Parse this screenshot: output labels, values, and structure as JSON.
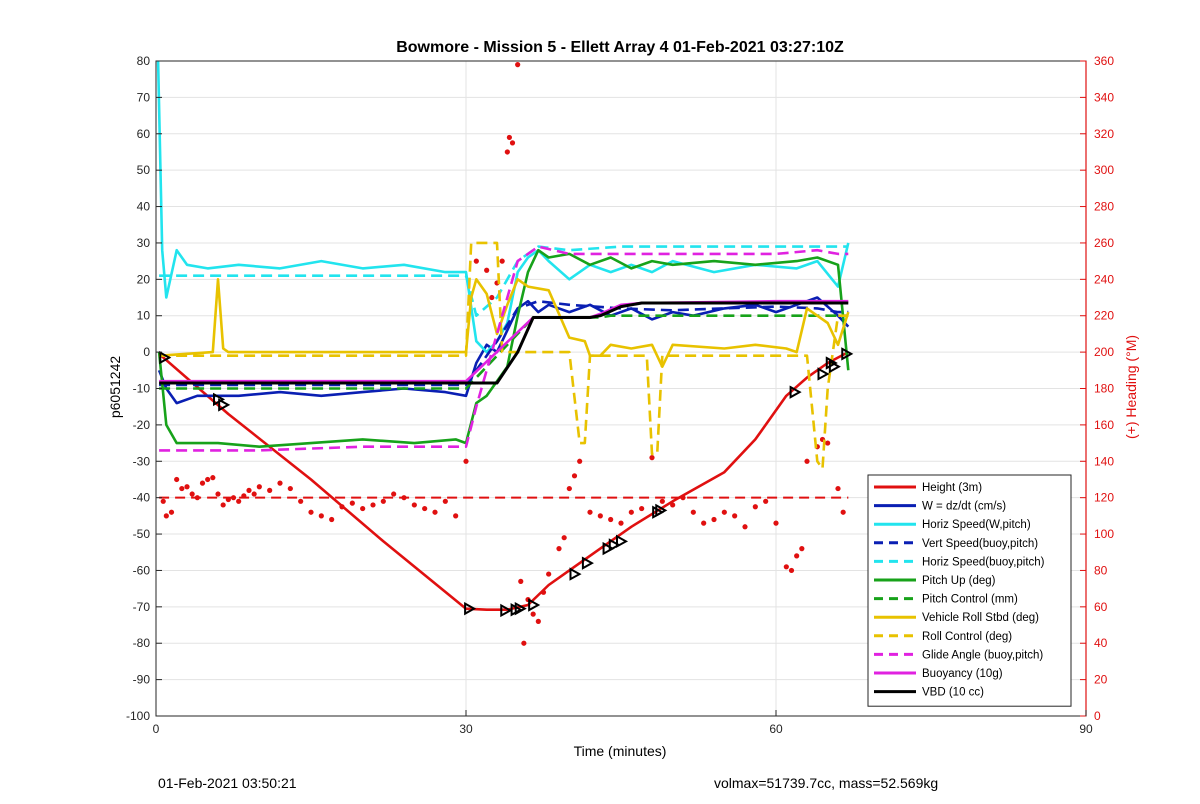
{
  "chart_data": {
    "type": "line",
    "title": "Bowmore - Mission 5 - Ellett Array 4 01-Feb-2021 03:27:10Z",
    "xlabel": "Time (minutes)",
    "ylabel": "p6051242",
    "y2label": "(+) Heading (°M)",
    "xlim": [
      0,
      90
    ],
    "ylim": [
      -100,
      80
    ],
    "y2lim": [
      0,
      360
    ],
    "xticks": [
      "0",
      "30",
      "60",
      "90"
    ],
    "yticks": [
      "-100",
      "-90",
      "-80",
      "-70",
      "-60",
      "-50",
      "-40",
      "-30",
      "-20",
      "-10",
      "0",
      "10",
      "20",
      "30",
      "40",
      "50",
      "60",
      "70",
      "80"
    ],
    "y2ticks": [
      "0",
      "20",
      "40",
      "60",
      "80",
      "100",
      "120",
      "140",
      "160",
      "180",
      "200",
      "220",
      "240",
      "260",
      "280",
      "300",
      "320",
      "340",
      "360"
    ],
    "grid": true,
    "legend_position": "bottom-right",
    "colors": {
      "red": "#e01010",
      "blue": "#0a1fb3",
      "cyan": "#22e4ee",
      "green": "#17a21a",
      "yellow": "#e8c200",
      "magenta": "#e022e0",
      "black": "#000000"
    },
    "series": [
      {
        "name": "Height (3m)",
        "color": "#e01010",
        "style": "solid",
        "x": [
          0.5,
          7,
          15,
          22,
          30,
          32,
          34,
          36,
          38,
          40,
          43,
          46,
          50,
          55,
          58,
          61,
          63,
          65,
          67
        ],
        "y": [
          -1,
          -17,
          -35,
          -52,
          -70.5,
          -70.8,
          -70.8,
          -69.5,
          -64,
          -60,
          -54,
          -48,
          -41,
          -33,
          -24,
          -12,
          -7,
          -3,
          0
        ]
      },
      {
        "name": "W = dz/dt (cm/s)",
        "color": "#0a1fb3",
        "style": "solid",
        "x": [
          0.3,
          1,
          2,
          4,
          8,
          12,
          16,
          20,
          24,
          28,
          30,
          31,
          32,
          33,
          34,
          35,
          36,
          37,
          38,
          40,
          42,
          44,
          46,
          48,
          50,
          52,
          55,
          58,
          60,
          62,
          64,
          66,
          67
        ],
        "y": [
          -5,
          -10,
          -14,
          -12,
          -12,
          -11,
          -12,
          -11,
          -10,
          -11,
          -12,
          -3,
          2,
          0,
          6,
          12,
          14,
          11,
          13,
          11,
          13,
          10,
          12,
          9,
          11,
          10,
          12,
          13,
          11,
          13,
          15,
          10,
          7
        ]
      },
      {
        "name": "Horiz Speed(W,pitch)",
        "color": "#22e4ee",
        "style": "solid",
        "x": [
          0.2,
          0.6,
          1,
          2,
          3,
          5,
          8,
          12,
          16,
          20,
          24,
          28,
          30,
          31,
          32,
          33,
          34,
          35,
          36,
          37,
          38,
          40,
          42,
          44,
          46,
          48,
          50,
          54,
          58,
          62,
          64,
          66,
          67
        ],
        "y": [
          80,
          28,
          15,
          28,
          24,
          23,
          24,
          23,
          25,
          23,
          24,
          22,
          22,
          3,
          0,
          3,
          8,
          22,
          26,
          28,
          25,
          20,
          24,
          22,
          24,
          22,
          25,
          22,
          24,
          23,
          25,
          18,
          30
        ]
      },
      {
        "name": "Vert Speed(buoy,pitch)",
        "color": "#0a1fb3",
        "style": "dashed",
        "x": [
          0.3,
          30,
          31,
          33,
          35,
          37,
          40,
          45,
          50,
          55,
          60,
          64,
          66,
          67
        ],
        "y": [
          -9,
          -9,
          -5,
          3,
          12,
          14,
          13,
          12,
          11.5,
          12,
          12.5,
          12,
          11,
          11
        ]
      },
      {
        "name": "Horiz Speed(buoy,pitch)",
        "color": "#22e4ee",
        "style": "dashed",
        "x": [
          0.3,
          30,
          31,
          33,
          35,
          37,
          40,
          45,
          50,
          55,
          60,
          64,
          66,
          67
        ],
        "y": [
          21,
          21,
          10,
          15,
          25,
          29,
          28,
          29,
          29,
          29,
          29,
          29,
          29,
          29
        ]
      },
      {
        "name": "Pitch Up (deg)",
        "color": "#17a21a",
        "style": "solid",
        "x": [
          0.3,
          1,
          2,
          6,
          10,
          15,
          20,
          25,
          29,
          30,
          31,
          32,
          33,
          34,
          35,
          36,
          37,
          38,
          40,
          42,
          44,
          46,
          48,
          50,
          54,
          58,
          62,
          64,
          66,
          67
        ],
        "y": [
          0,
          -20,
          -25,
          -25,
          -26,
          -25,
          -24,
          -25,
          -24,
          -25,
          -14,
          -12,
          -8,
          -4,
          10,
          22,
          28,
          26,
          27,
          24,
          26,
          23,
          25,
          24,
          25,
          24,
          25,
          26,
          24,
          -5
        ]
      },
      {
        "name": "Pitch Control (mm)",
        "color": "#17a21a",
        "style": "dashed",
        "x": [
          0.3,
          30,
          36.5,
          43,
          44,
          60,
          67
        ],
        "y": [
          -10,
          -10,
          9.5,
          9.5,
          10,
          10,
          10
        ]
      },
      {
        "name": "Vehicle Roll Stbd (deg)",
        "color": "#e8c200",
        "style": "solid",
        "x": [
          0.3,
          5.5,
          6,
          6.5,
          7,
          15,
          25,
          30,
          30.5,
          31,
          32,
          33,
          34,
          35,
          36,
          38,
          40,
          41.5,
          42,
          43,
          44,
          46,
          48,
          49,
          50,
          55,
          58,
          61,
          62,
          63,
          64,
          65,
          66,
          67
        ],
        "y": [
          -1,
          0,
          20,
          1,
          0,
          0,
          0,
          0,
          15,
          20,
          16,
          5,
          13,
          20,
          18,
          17,
          4,
          3,
          -1,
          -1,
          2,
          1,
          2,
          -4,
          2,
          1,
          2,
          1,
          0,
          12,
          10,
          8,
          2,
          11
        ]
      },
      {
        "name": "Roll Control (deg)",
        "color": "#e8c200",
        "style": "dashed",
        "x": [
          0.3,
          30,
          30.5,
          33,
          33.5,
          40,
          41,
          41.5,
          42,
          47.5,
          48,
          48.5,
          49,
          63,
          64,
          64.5,
          65,
          66,
          67
        ],
        "y": [
          -1,
          -1,
          30,
          30,
          0,
          0,
          -25,
          -25,
          -1,
          -1,
          -28,
          -28,
          -1,
          -1,
          -30,
          -32,
          -10,
          10,
          10
        ]
      },
      {
        "name": "Glide Angle (buoy,pitch)",
        "color": "#e022e0",
        "style": "dashed",
        "x": [
          0.3,
          10,
          20,
          30,
          31,
          33,
          35,
          37,
          40,
          45,
          50,
          55,
          60,
          64,
          66,
          67
        ],
        "y": [
          -27,
          -27,
          -26,
          -26,
          -15,
          5,
          25,
          29,
          27,
          27,
          27,
          27,
          27,
          28,
          27,
          27
        ]
      },
      {
        "name": "Buoyancy (10g)",
        "color": "#e022e0",
        "style": "solid",
        "x": [
          0.3,
          30,
          36.5,
          42,
          43,
          45,
          47,
          60,
          66,
          67
        ],
        "y": [
          -8,
          -8,
          9.5,
          9.5,
          10.5,
          13,
          13.5,
          14,
          14,
          14
        ]
      },
      {
        "name": "VBD (10 cc)",
        "color": "#000000",
        "style": "solid",
        "x": [
          0.3,
          30,
          33,
          35,
          36.5,
          42,
          43,
          45,
          47,
          60,
          66,
          67
        ],
        "y": [
          -8.5,
          -8.5,
          -8.5,
          0,
          9.5,
          9.5,
          10,
          12.5,
          13.5,
          13.5,
          13.5,
          13.5
        ]
      }
    ],
    "heading_reference": {
      "color": "#e01010",
      "style": "dashed",
      "value": 120
    },
    "heading_points": {
      "color": "#e01010",
      "x": [
        0.7,
        1.0,
        1.5,
        2.0,
        2.5,
        3.0,
        3.5,
        4.0,
        4.5,
        5.0,
        5.5,
        6.0,
        6.5,
        7.0,
        7.5,
        8.0,
        8.5,
        9.0,
        9.5,
        10,
        11,
        12,
        13,
        14,
        15,
        16,
        17,
        18,
        19,
        20,
        21,
        22,
        23,
        24,
        25,
        26,
        27,
        28,
        29,
        30,
        31,
        32,
        32.5,
        33,
        33.5,
        34,
        34.2,
        34.5,
        35,
        35.3,
        35.6,
        36,
        36.5,
        37,
        37.5,
        38,
        39,
        39.5,
        40,
        40.5,
        41,
        42,
        43,
        44,
        45,
        46,
        47,
        48,
        49,
        50,
        51,
        52,
        53,
        54,
        55,
        56,
        57,
        58,
        59,
        60,
        61,
        61.5,
        62,
        62.5,
        63,
        64,
        64.5,
        65,
        66,
        66.5
      ],
      "y": [
        118,
        110,
        112,
        130,
        125,
        126,
        122,
        120,
        128,
        130,
        131,
        122,
        116,
        119,
        120,
        118,
        121,
        124,
        122,
        126,
        124,
        128,
        125,
        118,
        112,
        110,
        108,
        115,
        117,
        114,
        116,
        118,
        122,
        120,
        116,
        114,
        112,
        118,
        110,
        140,
        250,
        245,
        230,
        238,
        250,
        310,
        318,
        315,
        358,
        74,
        40,
        64,
        56,
        52,
        68,
        78,
        92,
        98,
        125,
        132,
        140,
        112,
        110,
        108,
        106,
        112,
        114,
        142,
        118,
        116,
        120,
        112,
        106,
        108,
        112,
        110,
        104,
        115,
        118,
        106,
        82,
        80,
        88,
        92,
        140,
        148,
        152,
        150,
        125,
        112
      ]
    },
    "triangle_markers": {
      "color": "#000000",
      "x": [
        0.8,
        6.0,
        6.5,
        30.3,
        33.8,
        34.8,
        35.2,
        36.5,
        40.5,
        41.7,
        43.7,
        44.3,
        45.0,
        48.5,
        48.8,
        61.8,
        64.5,
        65.3,
        65.6,
        66.8
      ],
      "y": [
        -1.5,
        -13,
        -14.5,
        -70.5,
        -71,
        -70.8,
        -70.5,
        -69.5,
        -61,
        -58,
        -54,
        -53,
        -52,
        -44,
        -43.5,
        -11,
        -6,
        -3,
        -4,
        -0.5
      ]
    }
  },
  "footer": {
    "left": "01-Feb-2021 03:50:21",
    "right": "volmax=51739.7cc, mass=52.569kg"
  }
}
